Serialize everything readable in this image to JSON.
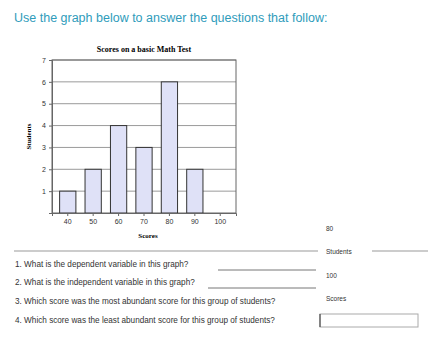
{
  "chart_data": {
    "type": "bar",
    "title": "Scores on a basic Math Test",
    "x_label": "Scores",
    "y_label": "Students",
    "categories": [
      "40",
      "50",
      "60",
      "70",
      "80",
      "90",
      "100"
    ],
    "values": [
      1,
      2,
      4,
      3,
      6,
      2,
      0
    ],
    "color": "#dfe1f7",
    "ylim": [
      0,
      7
    ],
    "yticks": [
      1,
      2,
      3,
      4,
      5,
      6,
      7
    ],
    "grid": true
  },
  "document": {
    "instruction": "Use the graph below to answer the questions that follow:",
    "questions": [
      "1. What is the dependent variable in this graph?",
      "2. What is the independent variable in this graph?",
      "3. Which score was the most abundant score for this group of students?",
      "4. Which score was the least abundant score for this group of students?"
    ],
    "answers": [
      "80",
      "Students",
      "100",
      "Scores"
    ]
  }
}
